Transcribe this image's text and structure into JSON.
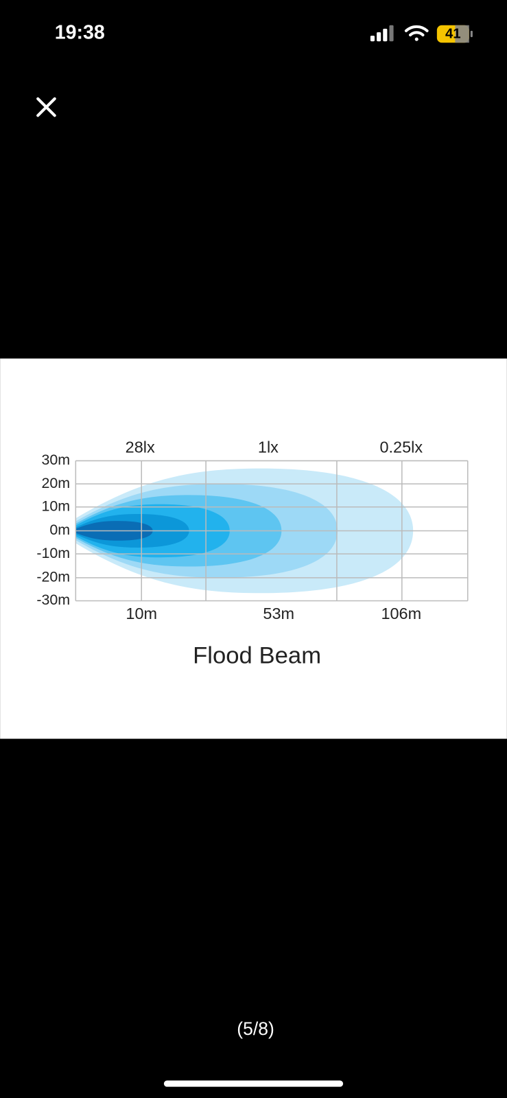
{
  "status_bar": {
    "time": "19:38",
    "battery": "41"
  },
  "image": {
    "y_labels": [
      "30m",
      "20m",
      "10m",
      "0m",
      "-10m",
      "-20m",
      "-30m"
    ],
    "top_labels": [
      "28lx",
      "1lx",
      "0.25lx"
    ],
    "bottom_labels": [
      "10m",
      "53m",
      "106m"
    ],
    "title": "Flood Beam"
  },
  "viewer": {
    "counter": "(5/8)"
  }
}
